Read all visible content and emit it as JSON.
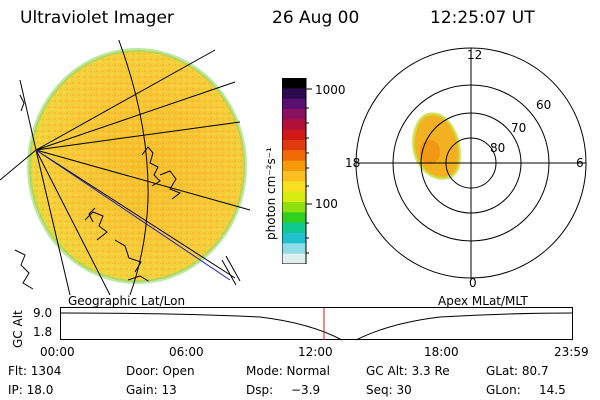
{
  "header": {
    "title": "Ultraviolet Imager",
    "date": "26 Aug 00",
    "time": "12:25:07 UT"
  },
  "colorbar": {
    "unit_label": "photon cm⁻²s⁻¹",
    "tick_labels": [
      "1000",
      "100"
    ],
    "colors": [
      "#000000",
      "#2a0a4a",
      "#5a1070",
      "#8a1060",
      "#b0103a",
      "#d01818",
      "#e23a10",
      "#f06a08",
      "#f69a08",
      "#fbc020",
      "#f6e020",
      "#d8ec10",
      "#90e010",
      "#30d020",
      "#10c890",
      "#20c0d0",
      "#90dce8",
      "#e0eeee"
    ]
  },
  "left_panel": {
    "label": "Geographic Lat/Lon"
  },
  "right_panel": {
    "label": "Apex MLat/MLT",
    "mlt_labels": [
      "12",
      "18",
      "6",
      "0"
    ],
    "lat_labels": [
      "60",
      "70",
      "80"
    ]
  },
  "altitude_plot": {
    "ylabel": "GC Alt",
    "yticks": [
      "9.0",
      "1.8"
    ],
    "xticks": [
      "00:00",
      "06:00",
      "12:00",
      "18:00",
      "23:59"
    ]
  },
  "info": {
    "row1": [
      "Flt: 1304",
      "Door: Open",
      "Mode: Normal",
      "GC Alt: 3.3 Re",
      "GLat: 80.7"
    ],
    "row2": {
      "ip": "IP: 18.0",
      "gain": "Gain: 13",
      "dsp_label": "Dsp:",
      "dsp_value": "−3.9",
      "seq": "Seq: 30",
      "glon_label": "GLon:",
      "glon_value": "14.5"
    }
  }
}
